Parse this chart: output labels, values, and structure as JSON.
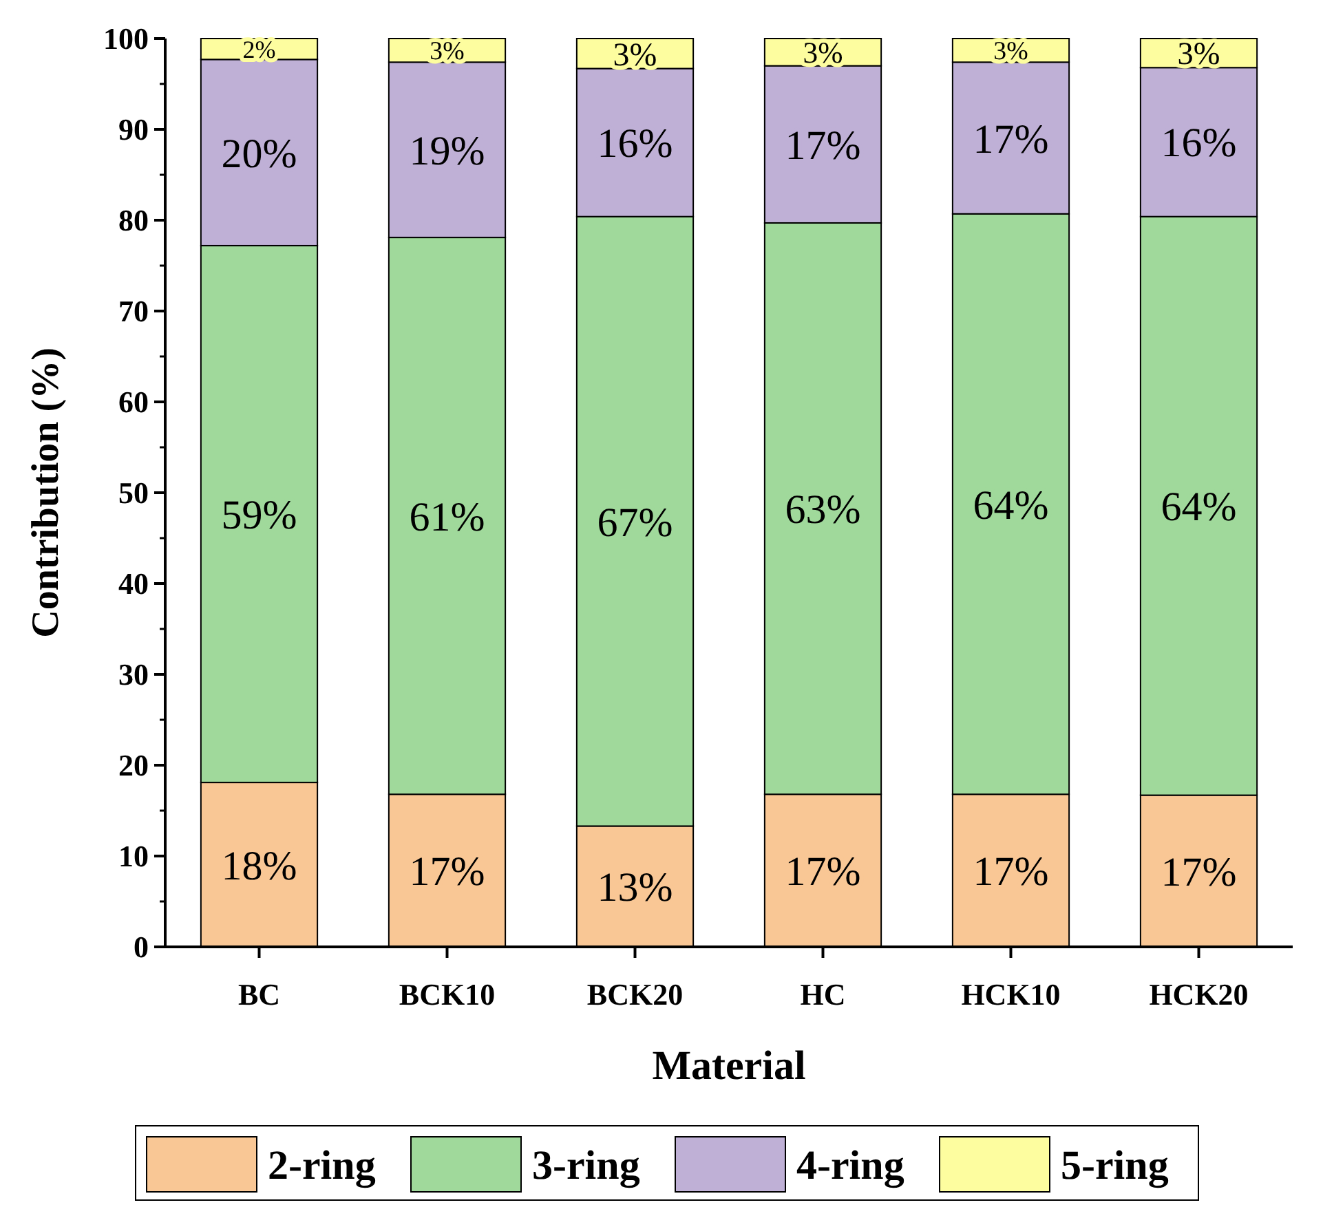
{
  "chart_data": {
    "type": "bar",
    "stacked": true,
    "xlabel": "Material",
    "ylabel": "Contribution (%)",
    "categories": [
      "BC",
      "BCK10",
      "BCK20",
      "HC",
      "HCK10",
      "HCK20"
    ],
    "ylim": [
      0,
      100
    ],
    "yticks": [
      0,
      10,
      20,
      30,
      40,
      50,
      60,
      70,
      80,
      90,
      100
    ],
    "legend": "bottom",
    "grid": false,
    "series": [
      {
        "name": "2-ring",
        "color": "#f9c795",
        "values": [
          18.1,
          16.8,
          13.3,
          16.8,
          16.8,
          16.7
        ],
        "value_labels": [
          "18%",
          "17%",
          "13%",
          "17%",
          "17%",
          "17%"
        ]
      },
      {
        "name": "3-ring",
        "color": "#a0d99b",
        "values": [
          59.1,
          61.3,
          67.1,
          62.9,
          63.9,
          63.7
        ],
        "value_labels": [
          "59%",
          "61%",
          "67%",
          "63%",
          "64%",
          "64%"
        ]
      },
      {
        "name": "4-ring",
        "color": "#bfb0d6",
        "values": [
          20.5,
          19.3,
          16.3,
          17.3,
          16.7,
          16.4
        ],
        "value_labels": [
          "20%",
          "19%",
          "16%",
          "17%",
          "17%",
          "16%"
        ]
      },
      {
        "name": "5-ring",
        "color": "#fdfd9f",
        "values": [
          2.3,
          2.6,
          3.3,
          3.0,
          2.6,
          3.2
        ],
        "value_labels": [
          "2%",
          "3%",
          "3%",
          "3%",
          "3%",
          "3%"
        ]
      }
    ]
  }
}
